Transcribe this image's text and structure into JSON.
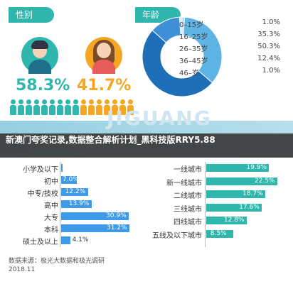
{
  "gender_section": {
    "tag": "性别",
    "male_pct": "58.3%",
    "female_pct": "41.7%",
    "colors": {
      "male": "#2fb7ad",
      "female": "#f5a623"
    }
  },
  "age_section": {
    "tag": "年龄",
    "groups": [
      {
        "label": "0–15岁",
        "value": "1.0%"
      },
      {
        "label": "16–25岁",
        "value": "35.3%"
      },
      {
        "label": "26–35岁",
        "value": "50.3%"
      },
      {
        "label": "36–45岁",
        "value": "12.4%"
      },
      {
        "label": "46–岁",
        "value": "1.0%"
      }
    ]
  },
  "overlay": {
    "watermark": "JIGUANG",
    "title": "新澳门夸奖记录,数据整合解析计划_黑科技版RRY5.88"
  },
  "chart_data": [
    {
      "type": "bar",
      "categories": [
        "小学及以下",
        "初中",
        "中专/技校",
        "高中",
        "大专",
        "本科",
        "硕士及以上"
      ],
      "values": [
        0.5,
        7.0,
        12.2,
        13.9,
        30.9,
        31.2,
        4.1
      ],
      "value_labels": [
        "",
        "7.0%",
        "12.2%",
        "13.9%",
        "30.9%",
        "31.2%",
        "4.1%"
      ],
      "title": "",
      "xlabel": "",
      "ylabel": ""
    },
    {
      "type": "bar",
      "categories": [
        "一线城市",
        "新一线城市",
        "二线城市",
        "三线城市",
        "四线城市",
        "五线及以下城市"
      ],
      "values": [
        19.9,
        22.5,
        18.7,
        17.6,
        12.8,
        8.5
      ],
      "value_labels": [
        "19.9%",
        "22.5%",
        "18.7%",
        "17.6%",
        "12.8%",
        "8.5%"
      ],
      "title": "",
      "xlabel": "",
      "ylabel": ""
    }
  ],
  "footer": {
    "source": "数据来源：极光大数据和极光调研",
    "date": "2018.11"
  }
}
